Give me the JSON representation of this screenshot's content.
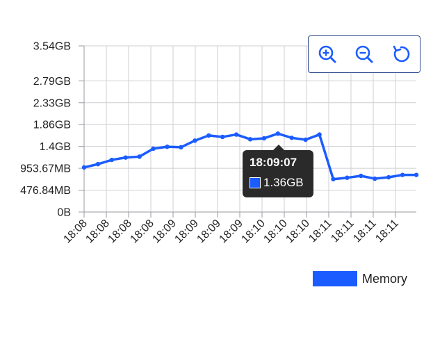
{
  "chart_data": {
    "type": "line",
    "y_tick_labels": [
      "0B",
      "476.84MB",
      "953.67MB",
      "1.4GB",
      "1.86GB",
      "2.33GB",
      "2.79GB",
      "3.54GB"
    ],
    "y_tick_values_gb": [
      0,
      0.4657,
      0.9313,
      1.397,
      1.863,
      2.328,
      2.794,
      3.539
    ],
    "ylim_gb": [
      0,
      3.539
    ],
    "x_tick_labels": [
      "18:08",
      "18:08",
      "18:08",
      "18:08",
      "18:09",
      "18:09",
      "18:09",
      "18:09",
      "18:10",
      "18:10",
      "18:10",
      "18:11",
      "18:11",
      "18:11",
      "18:11"
    ],
    "series": [
      {
        "name": "Memory",
        "color": "#1a5cff",
        "values_gb": [
          0.95,
          1.02,
          1.11,
          1.16,
          1.18,
          1.35,
          1.39,
          1.38,
          1.52,
          1.63,
          1.6,
          1.65,
          1.55,
          1.57,
          1.67,
          1.58,
          1.54,
          1.65,
          0.7,
          0.73,
          0.77,
          0.71,
          0.74,
          0.79,
          0.79
        ]
      }
    ],
    "grid": true,
    "legend_position": "bottom-right"
  },
  "tooltip": {
    "time": "18:09:07",
    "value": "1.36GB",
    "color": "#1a5cff"
  },
  "legend": {
    "label": "Memory",
    "color": "#1a5cff"
  },
  "toolbar": {
    "icons": [
      "zoom-in-icon",
      "zoom-out-icon",
      "reset-icon"
    ]
  }
}
